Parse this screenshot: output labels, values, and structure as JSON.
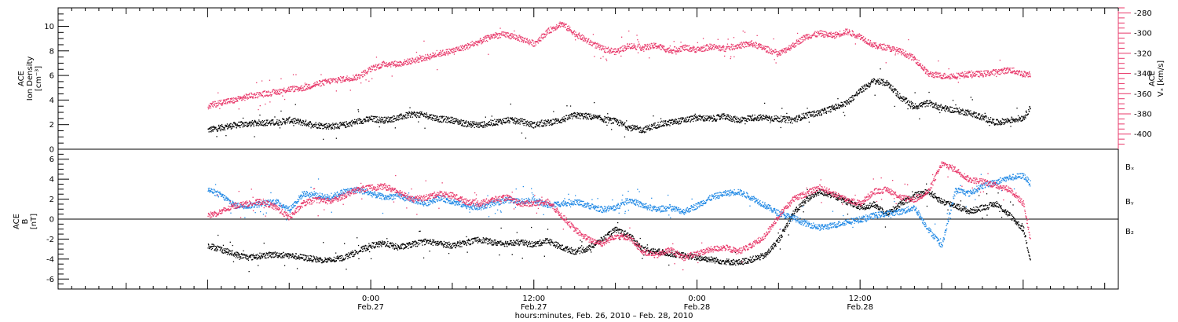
{
  "chart_data": [
    {
      "type": "scatter",
      "panel": "top",
      "ylabel_left": [
        "ACE",
        "Ion Density",
        "[cm⁻³]"
      ],
      "ylabel_right": [
        "ACE",
        "Vₓ [km/s]"
      ],
      "ylim_left": [
        0,
        11.5
      ],
      "ylim_right": [
        -415,
        -275
      ],
      "yticks_left": [
        0,
        2,
        4,
        6,
        8,
        10
      ],
      "yticks_right": [
        -400,
        -380,
        -360,
        -340,
        -320,
        -300,
        -280
      ],
      "series": [
        {
          "axis": "left",
          "color": "#000000",
          "x": [
            0,
            1,
            2,
            3,
            4,
            5,
            6,
            7,
            8,
            9,
            10,
            11,
            12,
            13,
            14,
            15,
            16,
            17,
            18,
            19,
            20,
            21,
            22,
            23,
            24,
            25,
            26,
            27,
            28,
            29,
            30,
            31,
            32,
            33,
            34,
            35,
            36,
            37,
            38,
            39,
            40,
            41,
            42,
            43,
            44,
            45,
            46,
            47,
            48,
            49,
            50,
            51,
            52,
            53,
            54,
            55,
            56,
            57,
            58,
            59,
            60,
            60.5
          ],
          "values": [
            1.6,
            1.8,
            2.0,
            2.1,
            2.2,
            2.2,
            2.4,
            2.2,
            2.0,
            1.9,
            2.0,
            2.3,
            2.5,
            2.4,
            2.6,
            2.9,
            2.8,
            2.5,
            2.4,
            2.1,
            2.0,
            2.2,
            2.4,
            2.3,
            2.0,
            2.2,
            2.4,
            2.8,
            2.7,
            2.5,
            2.3,
            1.8,
            1.6,
            2.0,
            2.2,
            2.4,
            2.6,
            2.5,
            2.7,
            2.4,
            2.6,
            2.6,
            2.5,
            2.4,
            2.8,
            3.0,
            3.4,
            3.8,
            4.8,
            5.6,
            5.4,
            4.2,
            3.5,
            3.8,
            3.4,
            3.2,
            3.0,
            2.6,
            2.2,
            2.4,
            2.6,
            3.4
          ]
        },
        {
          "axis": "right",
          "color": "#e8386a",
          "x": [
            0,
            1,
            2,
            3,
            4,
            5,
            6,
            7,
            8,
            9,
            10,
            11,
            12,
            13,
            14,
            15,
            16,
            17,
            18,
            19,
            20,
            21,
            22,
            23,
            24,
            25,
            26,
            27,
            28,
            29,
            30,
            31,
            32,
            33,
            34,
            35,
            36,
            37,
            38,
            39,
            40,
            41,
            42,
            43,
            44,
            45,
            46,
            47,
            48,
            49,
            50,
            51,
            52,
            53,
            54,
            55,
            56,
            57,
            58,
            59,
            60,
            60.5
          ],
          "values": [
            -372,
            -368,
            -366,
            -362,
            -360,
            -358,
            -355,
            -354,
            -350,
            -347,
            -345,
            -343,
            -335,
            -330,
            -330,
            -327,
            -324,
            -320,
            -317,
            -313,
            -308,
            -302,
            -301,
            -305,
            -310,
            -298,
            -290,
            -300,
            -308,
            -315,
            -318,
            -312,
            -314,
            -312,
            -317,
            -314,
            -316,
            -313,
            -315,
            -312,
            -310,
            -315,
            -320,
            -312,
            -303,
            -300,
            -302,
            -298,
            -303,
            -312,
            -314,
            -318,
            -325,
            -340,
            -342,
            -342,
            -340,
            -340,
            -338,
            -336,
            -340,
            -340
          ]
        }
      ]
    },
    {
      "type": "scatter",
      "panel": "bottom",
      "ylabel": [
        "ACE",
        "B",
        "[nT]"
      ],
      "ylim": [
        -7,
        7
      ],
      "yticks": [
        -6,
        -4,
        -2,
        0,
        2,
        4,
        6
      ],
      "legend": [
        "Bₓ",
        "Bᵧ",
        "B₂"
      ],
      "legend_placement": "right",
      "series": [
        {
          "name": "Bₓ",
          "color": "#000000",
          "x": [
            0,
            1,
            2,
            3,
            4,
            5,
            6,
            7,
            8,
            9,
            10,
            11,
            12,
            13,
            14,
            15,
            16,
            17,
            18,
            19,
            20,
            21,
            22,
            23,
            24,
            25,
            26,
            27,
            28,
            29,
            30,
            31,
            32,
            33,
            34,
            35,
            36,
            37,
            38,
            39,
            40,
            41,
            42,
            43,
            44,
            45,
            46,
            47,
            48,
            49,
            50,
            51,
            52,
            53,
            54,
            55,
            56,
            57,
            58,
            59,
            60,
            60.5
          ],
          "values": [
            -2.6,
            -3.0,
            -3.5,
            -3.8,
            -3.6,
            -3.5,
            -3.6,
            -3.8,
            -4.0,
            -4.1,
            -3.8,
            -3.2,
            -2.6,
            -2.4,
            -2.8,
            -2.5,
            -2.2,
            -2.4,
            -2.6,
            -2.3,
            -2.0,
            -2.3,
            -2.4,
            -2.3,
            -2.5,
            -2.1,
            -2.8,
            -3.2,
            -2.9,
            -2.0,
            -1.0,
            -1.6,
            -3.0,
            -3.2,
            -3.4,
            -3.6,
            -3.8,
            -4.0,
            -4.2,
            -4.3,
            -4.0,
            -3.6,
            -2.0,
            0.5,
            2.0,
            2.8,
            2.4,
            1.8,
            1.2,
            1.5,
            0.6,
            1.6,
            2.4,
            2.8,
            1.8,
            1.4,
            0.8,
            1.2,
            1.6,
            0.4,
            -1.0,
            -4.0
          ]
        },
        {
          "name": "Bᵧ",
          "color": "#1e88e5",
          "x": [
            0,
            1,
            2,
            3,
            4,
            5,
            6,
            7,
            8,
            9,
            10,
            11,
            12,
            13,
            14,
            15,
            16,
            17,
            18,
            19,
            20,
            21,
            22,
            23,
            24,
            25,
            26,
            27,
            28,
            29,
            30,
            31,
            32,
            33,
            34,
            35,
            36,
            37,
            38,
            39,
            40,
            41,
            42,
            43,
            44,
            45,
            46,
            47,
            48,
            49,
            50,
            51,
            52,
            53,
            54,
            55,
            56,
            57,
            58,
            59,
            60,
            60.5
          ],
          "values": [
            3.0,
            2.4,
            1.4,
            1.4,
            1.6,
            1.8,
            1.0,
            2.6,
            2.4,
            2.2,
            2.8,
            3.0,
            2.6,
            2.2,
            2.4,
            2.0,
            1.6,
            2.2,
            1.8,
            1.4,
            1.2,
            1.6,
            2.0,
            1.8,
            2.0,
            1.4,
            1.6,
            1.8,
            1.4,
            1.0,
            1.2,
            2.0,
            1.4,
            1.0,
            1.2,
            0.8,
            1.4,
            2.2,
            2.6,
            2.8,
            2.2,
            1.4,
            0.6,
            0.2,
            -0.4,
            -0.8,
            -0.6,
            -0.2,
            0.0,
            0.4,
            0.6,
            0.8,
            1.2,
            -1.0,
            -2.6,
            3.0,
            2.6,
            3.4,
            3.8,
            4.2,
            4.4,
            3.6
          ]
        },
        {
          "name": "B₂",
          "color": "#e8386a",
          "x": [
            0,
            1,
            2,
            3,
            4,
            5,
            6,
            7,
            8,
            9,
            10,
            11,
            12,
            13,
            14,
            15,
            16,
            17,
            18,
            19,
            20,
            21,
            22,
            23,
            24,
            25,
            26,
            27,
            28,
            29,
            30,
            31,
            32,
            33,
            34,
            35,
            36,
            37,
            38,
            39,
            40,
            41,
            42,
            43,
            44,
            45,
            46,
            47,
            48,
            49,
            50,
            51,
            52,
            53,
            54,
            55,
            56,
            57,
            58,
            59,
            60,
            60.5
          ],
          "values": [
            0.4,
            0.8,
            1.4,
            1.6,
            1.8,
            1.2,
            0.2,
            1.6,
            2.0,
            1.8,
            2.4,
            3.0,
            3.2,
            3.3,
            2.8,
            2.0,
            2.2,
            2.6,
            2.4,
            1.8,
            1.6,
            2.0,
            2.2,
            1.6,
            1.6,
            1.8,
            0.4,
            -1.0,
            -2.0,
            -2.4,
            -1.6,
            -1.8,
            -3.2,
            -3.6,
            -3.0,
            -3.8,
            -3.4,
            -3.0,
            -2.8,
            -3.2,
            -2.6,
            -1.6,
            0.4,
            2.0,
            2.6,
            3.2,
            2.6,
            2.0,
            1.6,
            2.8,
            3.0,
            2.2,
            2.0,
            2.8,
            5.6,
            5.0,
            4.0,
            3.8,
            3.4,
            3.0,
            1.6,
            -2.0
          ]
        }
      ]
    },
    {
      "xlabel": "hours:minutes, Feb. 26, 2010 – Feb. 28, 2010",
      "xlim": [
        -11,
        67
      ],
      "xticks": [
        {
          "x": 12,
          "label": [
            "0:00",
            "Feb.27"
          ]
        },
        {
          "x": 24,
          "label": [
            "12:00",
            "Feb.27"
          ]
        },
        {
          "x": 36,
          "label": [
            "0:00",
            "Feb.28"
          ]
        },
        {
          "x": 48,
          "label": [
            "12:00",
            "Feb.28"
          ]
        }
      ]
    }
  ],
  "colors": {
    "black": "#000000",
    "pink": "#e8386a",
    "blue": "#1e88e5"
  }
}
